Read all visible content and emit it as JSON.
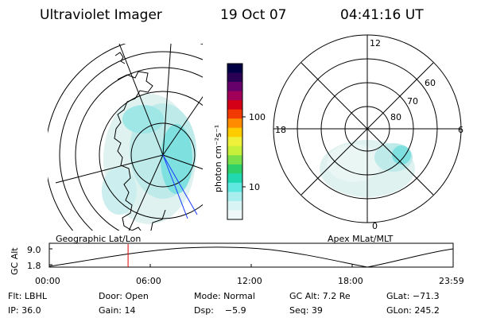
{
  "header": {
    "title": "Ultraviolet Imager",
    "date": "19 Oct 07",
    "time": "04:41:16 UT"
  },
  "geo_map": {
    "label": "Geographic Lat/Lon"
  },
  "apex_map": {
    "label": "Apex MLat/MLT",
    "mlt_labels": {
      "top": "12",
      "left": "18",
      "right": "6",
      "bottom": "0"
    },
    "lat_labels": [
      "60",
      "70",
      "80"
    ]
  },
  "colorbar": {
    "unit_label": "photon cm⁻²s⁻¹",
    "ticks": [
      "100",
      "10"
    ],
    "colors": [
      "#000044",
      "#2a0055",
      "#66006a",
      "#a0005a",
      "#d40018",
      "#f03a00",
      "#ff8c00",
      "#ffcc00",
      "#eef03a",
      "#c6f03a",
      "#7ae04a",
      "#2ed06a",
      "#22d8b0",
      "#5ee8e0",
      "#a8eeee",
      "#d8f4f4",
      "#eef8f8"
    ]
  },
  "orbit": {
    "ylabel": "GC Alt",
    "yticks": [
      "9.0",
      "1.8"
    ],
    "xticks": [
      "00:00",
      "06:00",
      "12:00",
      "18:00",
      "23:59"
    ],
    "current_time_fraction": 0.195
  },
  "info": {
    "filter": "Flt: LBHL",
    "door": "Door: Open",
    "mode": "Mode: Normal",
    "gc_alt": "GC Alt: 7.2 Re",
    "glat": "GLat: −71.3",
    "ip": "IP: 36.0",
    "gain": "Gain: 14",
    "dsp": "Dsp:    −5.9",
    "seq": "Seq: 39",
    "glon": "GLon: 245.2"
  }
}
